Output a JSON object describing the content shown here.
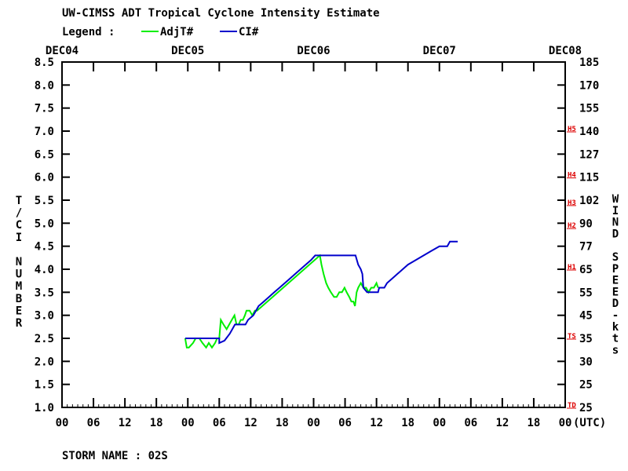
{
  "chart_data": {
    "type": "line",
    "title": "UW-CIMSS ADT Tropical Cyclone Intensity Estimate",
    "legend_label": "Legend :",
    "legend_position": "top-left",
    "left_axis_label": "T/CI NUMBER",
    "right_axis_label": "WIND SPEED-kts",
    "x_unit_label": "(UTC)",
    "date_labels": [
      "DEC04",
      "DEC05",
      "DEC06",
      "DEC07",
      "DEC08"
    ],
    "hour_ticks": [
      "00",
      "06",
      "12",
      "18",
      "00",
      "06",
      "12",
      "18",
      "00",
      "06",
      "12",
      "18",
      "00",
      "06",
      "12",
      "18",
      "00"
    ],
    "x_range_hours": [
      0,
      96
    ],
    "y_range": [
      1.0,
      8.5
    ],
    "y_ticks": [
      "1.0",
      "1.5",
      "2.0",
      "2.5",
      "3.0",
      "3.5",
      "4.0",
      "4.5",
      "5.0",
      "5.5",
      "6.0",
      "6.5",
      "7.0",
      "7.5",
      "8.0",
      "8.5"
    ],
    "wind_ticks": [
      {
        "t": 1.0,
        "label": "25"
      },
      {
        "t": 1.5,
        "label": "25"
      },
      {
        "t": 2.0,
        "label": "30"
      },
      {
        "t": 2.5,
        "label": "35"
      },
      {
        "t": 3.0,
        "label": "45"
      },
      {
        "t": 3.5,
        "label": "55"
      },
      {
        "t": 4.0,
        "label": "65"
      },
      {
        "t": 4.5,
        "label": "77"
      },
      {
        "t": 5.0,
        "label": "90"
      },
      {
        "t": 5.5,
        "label": "102"
      },
      {
        "t": 6.0,
        "label": "115"
      },
      {
        "t": 6.5,
        "label": "127"
      },
      {
        "t": 7.0,
        "label": "140"
      },
      {
        "t": 7.5,
        "label": "155"
      },
      {
        "t": 8.0,
        "label": "170"
      },
      {
        "t": 8.5,
        "label": "185"
      }
    ],
    "category_marks": [
      {
        "t": 1.0,
        "label": "TD"
      },
      {
        "t": 2.5,
        "label": "TS"
      },
      {
        "t": 4.0,
        "label": "H1"
      },
      {
        "t": 4.9,
        "label": "H2"
      },
      {
        "t": 5.4,
        "label": "H3"
      },
      {
        "t": 6.0,
        "label": "H4"
      },
      {
        "t": 7.0,
        "label": "H5"
      }
    ],
    "grid": false,
    "series": [
      {
        "name": "AdjT#",
        "color": "#00ee00",
        "points": [
          [
            23.5,
            2.5
          ],
          [
            23.8,
            2.3
          ],
          [
            24.2,
            2.3
          ],
          [
            25.0,
            2.4
          ],
          [
            25.5,
            2.5
          ],
          [
            26.2,
            2.5
          ],
          [
            26.8,
            2.4
          ],
          [
            27.5,
            2.3
          ],
          [
            28.0,
            2.4
          ],
          [
            28.6,
            2.3
          ],
          [
            29.2,
            2.4
          ],
          [
            29.6,
            2.5
          ],
          [
            30.0,
            2.5
          ],
          [
            30.3,
            2.9
          ],
          [
            30.8,
            2.8
          ],
          [
            31.4,
            2.7
          ],
          [
            31.9,
            2.8
          ],
          [
            32.4,
            2.9
          ],
          [
            32.9,
            3.0
          ],
          [
            33.3,
            2.8
          ],
          [
            33.7,
            2.8
          ],
          [
            34.1,
            2.9
          ],
          [
            34.5,
            2.9
          ],
          [
            34.9,
            3.0
          ],
          [
            35.2,
            3.1
          ],
          [
            35.8,
            3.1
          ],
          [
            36.3,
            3.0
          ],
          [
            36.8,
            3.1
          ],
          [
            37.2,
            3.1
          ],
          [
            49.2,
            4.3
          ],
          [
            49.5,
            4.1
          ],
          [
            49.9,
            3.9
          ],
          [
            50.4,
            3.7
          ],
          [
            50.8,
            3.6
          ],
          [
            51.3,
            3.5
          ],
          [
            51.9,
            3.4
          ],
          [
            52.4,
            3.4
          ],
          [
            52.9,
            3.5
          ],
          [
            53.4,
            3.5
          ],
          [
            53.9,
            3.6
          ],
          [
            54.3,
            3.5
          ],
          [
            54.8,
            3.4
          ],
          [
            55.2,
            3.3
          ],
          [
            55.6,
            3.3
          ],
          [
            55.9,
            3.2
          ],
          [
            56.2,
            3.5
          ],
          [
            56.5,
            3.6
          ],
          [
            57.0,
            3.7
          ],
          [
            57.5,
            3.6
          ],
          [
            58.0,
            3.6
          ],
          [
            58.5,
            3.5
          ],
          [
            59.0,
            3.6
          ],
          [
            59.5,
            3.6
          ],
          [
            60.0,
            3.7
          ],
          [
            60.3,
            3.6
          ]
        ]
      },
      {
        "name": "CI#",
        "color": "#0000cc",
        "points": [
          [
            23.5,
            2.5
          ],
          [
            30.0,
            2.5
          ],
          [
            30.0,
            2.4
          ],
          [
            31.0,
            2.45
          ],
          [
            32.0,
            2.6
          ],
          [
            32.5,
            2.7
          ],
          [
            33.0,
            2.8
          ],
          [
            35.0,
            2.8
          ],
          [
            35.5,
            2.9
          ],
          [
            36.5,
            3.0
          ],
          [
            37.0,
            3.1
          ],
          [
            37.5,
            3.2
          ],
          [
            38.5,
            3.3
          ],
          [
            39.5,
            3.4
          ],
          [
            40.5,
            3.5
          ],
          [
            41.5,
            3.6
          ],
          [
            42.5,
            3.7
          ],
          [
            43.5,
            3.8
          ],
          [
            44.5,
            3.9
          ],
          [
            45.5,
            4.0
          ],
          [
            46.5,
            4.1
          ],
          [
            47.5,
            4.2
          ],
          [
            48.3,
            4.3
          ],
          [
            56.0,
            4.3
          ],
          [
            56.5,
            4.1
          ],
          [
            57.0,
            4.0
          ],
          [
            57.3,
            3.9
          ],
          [
            57.5,
            3.6
          ],
          [
            58.2,
            3.5
          ],
          [
            60.3,
            3.5
          ],
          [
            60.5,
            3.6
          ],
          [
            61.5,
            3.6
          ],
          [
            62.0,
            3.7
          ],
          [
            63.0,
            3.8
          ],
          [
            64.0,
            3.9
          ],
          [
            65.0,
            4.0
          ],
          [
            66.0,
            4.1
          ],
          [
            67.5,
            4.2
          ],
          [
            69.0,
            4.3
          ],
          [
            70.5,
            4.4
          ],
          [
            72.0,
            4.5
          ],
          [
            73.5,
            4.5
          ],
          [
            74.0,
            4.6
          ],
          [
            75.5,
            4.6
          ]
        ]
      }
    ]
  },
  "footer": {
    "storm_name": "STORM NAME : 02S"
  }
}
